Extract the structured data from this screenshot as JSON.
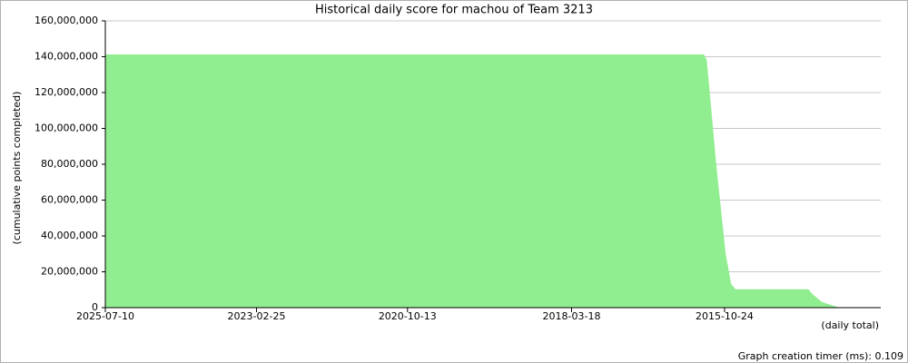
{
  "chart_data": {
    "type": "area",
    "title": "Historical daily score for machou of Team 3213",
    "y_label": "(cumulative points completed)",
    "x_label": "(daily total)",
    "footer": "Graph creation timer (ms): 0.109",
    "color": "#90ee90",
    "grid": true,
    "x": [
      "2025-07-10",
      "2016-02-20",
      "2016-02-05",
      "2015-12-13",
      "2015-10-20",
      "2015-09-18",
      "2015-08-23",
      "2014-07-02",
      "2014-06-05",
      "2014-04-16",
      "2014-02-14",
      "2014-01-14"
    ],
    "values": [
      141000000,
      141000000,
      138000000,
      80000000,
      30000000,
      13000000,
      10000000,
      10000000,
      7000000,
      3000000,
      1000000,
      0
    ],
    "xlim": [
      "2025-07-10",
      "2013-05-12"
    ],
    "xticks": [
      "2025-07-10",
      "2023-02-25",
      "2020-10-13",
      "2018-03-18",
      "2015-10-24"
    ],
    "ylim": [
      0,
      160000000
    ],
    "yticks": [
      0,
      {
        "value": 20000000,
        "label": "20,000,000"
      },
      {
        "value": 40000000,
        "label": "40,000,000"
      },
      {
        "value": 60000000,
        "label": "60,000,000"
      },
      {
        "value": 80000000,
        "label": "80,000,000"
      },
      {
        "value": 100000000,
        "label": "100,000,000"
      },
      {
        "value": 120000000,
        "label": "120,000,000"
      },
      {
        "value": 140000000,
        "label": "140,000,000"
      },
      {
        "value": 160000000,
        "label": "160,000,000"
      }
    ]
  }
}
